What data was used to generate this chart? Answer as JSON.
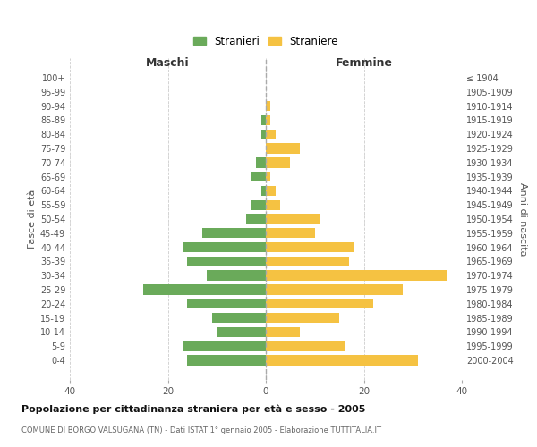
{
  "age_groups": [
    "100+",
    "95-99",
    "90-94",
    "85-89",
    "80-84",
    "75-79",
    "70-74",
    "65-69",
    "60-64",
    "55-59",
    "50-54",
    "45-49",
    "40-44",
    "35-39",
    "30-34",
    "25-29",
    "20-24",
    "15-19",
    "10-14",
    "5-9",
    "0-4"
  ],
  "birth_years": [
    "≤ 1904",
    "1905-1909",
    "1910-1914",
    "1915-1919",
    "1920-1924",
    "1925-1929",
    "1930-1934",
    "1935-1939",
    "1940-1944",
    "1945-1949",
    "1950-1954",
    "1955-1959",
    "1960-1964",
    "1965-1969",
    "1970-1974",
    "1975-1979",
    "1980-1984",
    "1985-1989",
    "1990-1994",
    "1995-1999",
    "2000-2004"
  ],
  "males": [
    0,
    0,
    0,
    1,
    1,
    0,
    2,
    3,
    1,
    3,
    4,
    13,
    17,
    16,
    12,
    25,
    16,
    11,
    10,
    17,
    16
  ],
  "females": [
    0,
    0,
    1,
    1,
    2,
    7,
    5,
    1,
    2,
    3,
    11,
    10,
    18,
    17,
    37,
    28,
    22,
    15,
    7,
    16,
    31
  ],
  "male_color": "#6aaa5a",
  "female_color": "#f5c242",
  "background_color": "#ffffff",
  "grid_color": "#cccccc",
  "title": "Popolazione per cittadinanza straniera per età e sesso - 2005",
  "subtitle": "COMUNE DI BORGO VALSUGANA (TN) - Dati ISTAT 1° gennaio 2005 - Elaborazione TUTTITALIA.IT",
  "ylabel_left": "Fasce di età",
  "ylabel_right": "Anni di nascita",
  "xlabel_left": "Maschi",
  "xlabel_right": "Femmine",
  "legend_male": "Stranieri",
  "legend_female": "Straniere",
  "xlim": 40
}
